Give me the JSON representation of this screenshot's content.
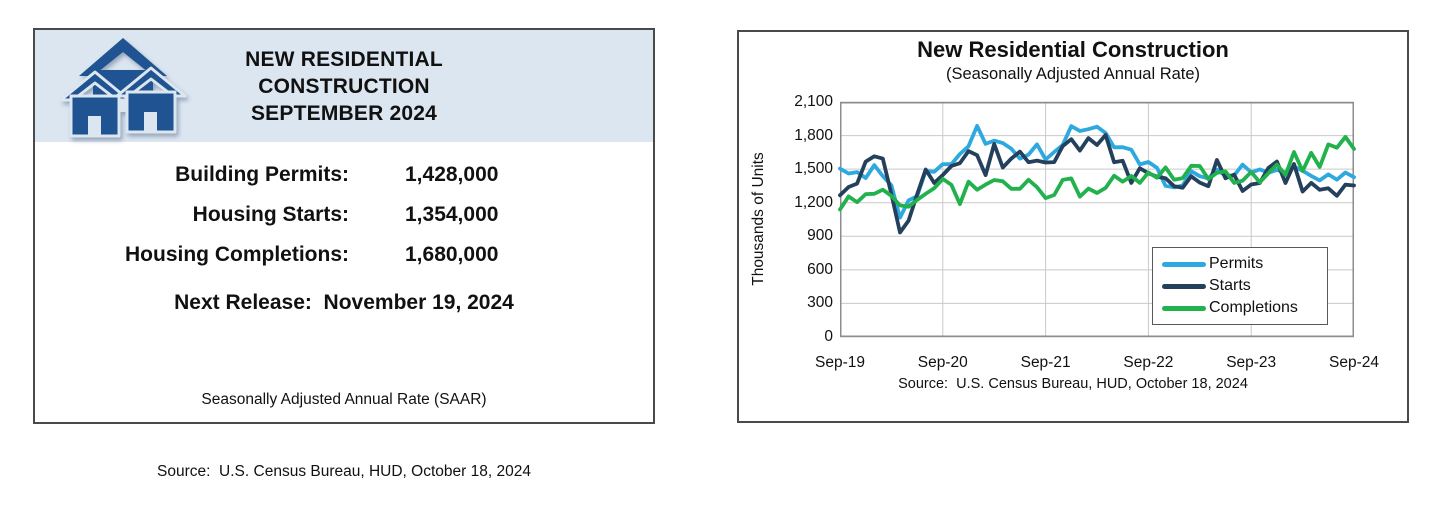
{
  "summary": {
    "title_lines": [
      "NEW RESIDENTIAL",
      "CONSTRUCTION",
      "SEPTEMBER 2024"
    ],
    "stats": [
      {
        "label": "Building Permits:",
        "value": "1,428,000"
      },
      {
        "label": "Housing Starts:",
        "value": "1,354,000"
      },
      {
        "label": "Housing Completions:",
        "value": "1,680,000"
      }
    ],
    "next_release": "Next Release:  November 19, 2024",
    "saar_note": "Seasonally Adjusted Annual Rate (SAAR)",
    "source": "Source:  U.S. Census Bureau, HUD, October 18, 2024",
    "header_bg": "#DCE6F1",
    "icon_color": "#1F5391",
    "icon_name": "houses-icon"
  },
  "chart_data": {
    "type": "line",
    "title": "New Residential Construction",
    "subtitle": "(Seasonally Adjusted Annual Rate)",
    "ylabel": "Thousands of Units",
    "xlabel": "",
    "ylim": [
      0,
      2100
    ],
    "y_ticks": [
      0,
      300,
      600,
      900,
      1200,
      1500,
      1800,
      2100
    ],
    "x_tick_labels": [
      "Sep-19",
      "Sep-20",
      "Sep-21",
      "Sep-22",
      "Sep-23",
      "Sep-24"
    ],
    "frequency": "monthly",
    "x_range": [
      "Sep-2019",
      "Sep-2024"
    ],
    "grid": true,
    "legend_position": "lower right",
    "source": "Source:  U.S. Census Bureau, HUD, October 18, 2024",
    "series": [
      {
        "name": "Permits",
        "color": "#2EA9DF",
        "values": [
          1505,
          1461,
          1474,
          1420,
          1536,
          1438,
          1356,
          1066,
          1220,
          1258,
          1483,
          1476,
          1545,
          1544,
          1635,
          1704,
          1886,
          1726,
          1755,
          1733,
          1683,
          1594,
          1630,
          1721,
          1586,
          1653,
          1717,
          1885,
          1841,
          1857,
          1879,
          1823,
          1695,
          1696,
          1674,
          1542,
          1564,
          1512,
          1351,
          1337,
          1354,
          1482,
          1437,
          1417,
          1496,
          1441,
          1443,
          1541,
          1471,
          1498,
          1467,
          1493,
          1470,
          1523,
          1485,
          1440,
          1399,
          1454,
          1406,
          1470,
          1428
        ]
      },
      {
        "name": "Starts",
        "color": "#24405C",
        "values": [
          1266,
          1340,
          1371,
          1567,
          1615,
          1594,
          1276,
          934,
          1038,
          1273,
          1497,
          1376,
          1448,
          1528,
          1553,
          1661,
          1625,
          1447,
          1725,
          1514,
          1594,
          1657,
          1562,
          1576,
          1559,
          1563,
          1706,
          1768,
          1666,
          1777,
          1716,
          1805,
          1562,
          1575,
          1377,
          1508,
          1463,
          1432,
          1419,
          1348,
          1334,
          1436,
          1380,
          1348,
          1583,
          1418,
          1451,
          1305,
          1363,
          1376,
          1510,
          1568,
          1376,
          1546,
          1299,
          1377,
          1315,
          1329,
          1262,
          1361,
          1354
        ]
      },
      {
        "name": "Completions",
        "color": "#21B24D",
        "values": [
          1139,
          1256,
          1205,
          1277,
          1280,
          1316,
          1261,
          1176,
          1164,
          1225,
          1280,
          1330,
          1413,
          1360,
          1188,
          1388,
          1316,
          1362,
          1403,
          1391,
          1324,
          1324,
          1405,
          1339,
          1241,
          1269,
          1404,
          1417,
          1255,
          1326,
          1287,
          1332,
          1441,
          1388,
          1440,
          1377,
          1470,
          1423,
          1516,
          1406,
          1420,
          1530,
          1528,
          1411,
          1466,
          1480,
          1377,
          1397,
          1475,
          1382,
          1463,
          1541,
          1449,
          1653,
          1483,
          1646,
          1519,
          1721,
          1692,
          1788,
          1680
        ]
      }
    ]
  }
}
